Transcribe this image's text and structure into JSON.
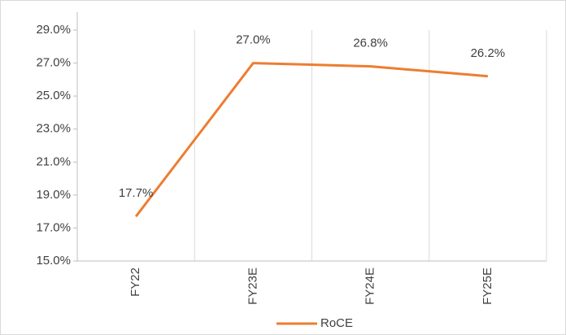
{
  "chart_data": {
    "type": "line",
    "categories": [
      "FY22",
      "FY23E",
      "FY24E",
      "FY25E"
    ],
    "series": [
      {
        "name": "RoCE",
        "color": "#ed7d31",
        "values": [
          17.7,
          27.0,
          26.8,
          26.2
        ],
        "value_labels": [
          "17.7%",
          "27.0%",
          "26.8%",
          "26.2%"
        ]
      }
    ],
    "ylim": [
      15,
      29
    ],
    "yticks": [
      {
        "value": 15,
        "label": "15.0%"
      },
      {
        "value": 17,
        "label": "17.0%"
      },
      {
        "value": 19,
        "label": "19.0%"
      },
      {
        "value": 21,
        "label": "21.0%"
      },
      {
        "value": 23,
        "label": "23.0%"
      },
      {
        "value": 25,
        "label": "25.0%"
      },
      {
        "value": 27,
        "label": "27.0%"
      },
      {
        "value": 29,
        "label": "29.0%"
      }
    ],
    "grid": true,
    "legend": "bottom"
  }
}
